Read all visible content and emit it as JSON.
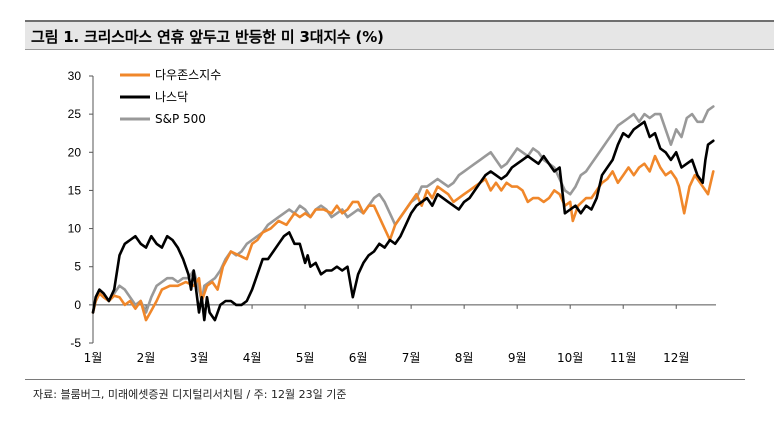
{
  "header": {
    "title": "그림 1. 크리스마스 연휴 앞두고 반등한 미 3대지수 (%)"
  },
  "footer": {
    "source": "자료: 블룸버그, 미래에셋증권 디지털리서치팀 / 주: 12월 23일 기준"
  },
  "chart_data": {
    "type": "line",
    "title": "그림 1. 크리스마스 연휴 앞두고 반등한 미 3대지수 (%)",
    "xlabel": "",
    "ylabel": "",
    "xlim": [
      0,
      11.75
    ],
    "ylim": [
      -5,
      30
    ],
    "yticks": [
      -5,
      0,
      5,
      10,
      15,
      20,
      25,
      30
    ],
    "xticks": [
      {
        "x": 0,
        "label": "1월"
      },
      {
        "x": 1,
        "label": "2월"
      },
      {
        "x": 2,
        "label": "3월"
      },
      {
        "x": 3,
        "label": "4월"
      },
      {
        "x": 4,
        "label": "5월"
      },
      {
        "x": 5,
        "label": "6월"
      },
      {
        "x": 6,
        "label": "7월"
      },
      {
        "x": 7,
        "label": "8월"
      },
      {
        "x": 8,
        "label": "9월"
      },
      {
        "x": 9,
        "label": "10월"
      },
      {
        "x": 10,
        "label": "11월"
      },
      {
        "x": 11,
        "label": "12월"
      }
    ],
    "grid": false,
    "legend_position": "top-left",
    "series": [
      {
        "name": "다우존스지수",
        "color": "#f0872a",
        "x": [
          0,
          0.05,
          0.12,
          0.2,
          0.3,
          0.4,
          0.5,
          0.6,
          0.7,
          0.8,
          0.9,
          1.0,
          1.08,
          1.2,
          1.3,
          1.45,
          1.6,
          1.75,
          1.9,
          2.0,
          2.05,
          2.15,
          2.25,
          2.35,
          2.45,
          2.6,
          2.75,
          2.9,
          3.0,
          3.1,
          3.2,
          3.35,
          3.5,
          3.65,
          3.8,
          3.9,
          4.0,
          4.1,
          4.2,
          4.35,
          4.5,
          4.6,
          4.7,
          4.8,
          4.9,
          5.0,
          5.1,
          5.2,
          5.3,
          5.4,
          5.5,
          5.6,
          5.7,
          5.8,
          5.9,
          6.0,
          6.1,
          6.2,
          6.3,
          6.4,
          6.5,
          6.6,
          6.7,
          6.8,
          6.9,
          7.0,
          7.1,
          7.2,
          7.3,
          7.4,
          7.5,
          7.6,
          7.7,
          7.8,
          7.9,
          8.0,
          8.1,
          8.2,
          8.3,
          8.4,
          8.5,
          8.6,
          8.7,
          8.8,
          8.9,
          9.0,
          9.05,
          9.15,
          9.3,
          9.4,
          9.5,
          9.6,
          9.7,
          9.8,
          9.9,
          10.0,
          10.1,
          10.2,
          10.3,
          10.4,
          10.5,
          10.6,
          10.7,
          10.8,
          10.9,
          11.0,
          11.05,
          11.15,
          11.25,
          11.35,
          11.45,
          11.55,
          11.6,
          11.7
        ],
        "values": [
          -1,
          0.5,
          1.5,
          1.0,
          0.5,
          1.2,
          1.0,
          0.0,
          0.5,
          -0.5,
          0.5,
          -2.0,
          -1.0,
          0.5,
          2.0,
          2.5,
          2.5,
          3.0,
          2.5,
          3.5,
          0.5,
          2.5,
          3.0,
          2.0,
          5.0,
          7.0,
          6.5,
          6.0,
          8.0,
          8.5,
          9.5,
          10.0,
          11.0,
          10.5,
          12.0,
          11.5,
          12.0,
          11.5,
          12.5,
          12.5,
          12.0,
          13.0,
          12.0,
          12.5,
          13.5,
          13.5,
          12.0,
          13.0,
          13.0,
          11.5,
          10.0,
          8.5,
          10.5,
          11.5,
          12.5,
          13.5,
          14.5,
          13.0,
          15.0,
          14.0,
          15.5,
          15.0,
          14.5,
          13.5,
          14.0,
          14.5,
          15.0,
          15.5,
          16.0,
          16.5,
          15.0,
          16.0,
          15.0,
          16.0,
          15.5,
          15.5,
          15.0,
          13.5,
          14.0,
          14.0,
          13.5,
          14.0,
          15.0,
          14.5,
          13.0,
          13.5,
          11.0,
          13.0,
          14.0,
          14.0,
          15.0,
          16.0,
          16.5,
          17.5,
          16.0,
          17.0,
          18.0,
          17.0,
          18.0,
          18.5,
          17.5,
          19.5,
          18.0,
          17.0,
          17.5,
          16.5,
          15.5,
          12.0,
          15.5,
          17.0,
          16.0,
          15.0,
          14.5,
          17.5
        ]
      },
      {
        "name": "나스닥",
        "color": "#000000",
        "x": [
          0,
          0.05,
          0.12,
          0.2,
          0.3,
          0.4,
          0.5,
          0.6,
          0.7,
          0.8,
          0.9,
          1.0,
          1.1,
          1.2,
          1.3,
          1.4,
          1.5,
          1.6,
          1.7,
          1.8,
          1.85,
          1.9,
          2.0,
          2.05,
          2.1,
          2.15,
          2.2,
          2.3,
          2.4,
          2.5,
          2.6,
          2.7,
          2.8,
          2.9,
          3.0,
          3.1,
          3.2,
          3.3,
          3.4,
          3.5,
          3.6,
          3.7,
          3.8,
          3.9,
          4.0,
          4.05,
          4.1,
          4.2,
          4.3,
          4.4,
          4.5,
          4.6,
          4.7,
          4.8,
          4.9,
          5.0,
          5.1,
          5.2,
          5.3,
          5.4,
          5.5,
          5.6,
          5.7,
          5.8,
          5.9,
          6.0,
          6.1,
          6.2,
          6.3,
          6.4,
          6.5,
          6.6,
          6.7,
          6.8,
          6.9,
          7.0,
          7.1,
          7.2,
          7.3,
          7.4,
          7.5,
          7.6,
          7.7,
          7.8,
          7.9,
          8.0,
          8.1,
          8.2,
          8.3,
          8.4,
          8.5,
          8.6,
          8.7,
          8.8,
          8.9,
          9.0,
          9.1,
          9.2,
          9.3,
          9.4,
          9.5,
          9.6,
          9.7,
          9.8,
          9.9,
          10.0,
          10.1,
          10.2,
          10.3,
          10.4,
          10.5,
          10.6,
          10.7,
          10.8,
          10.9,
          11.0,
          11.1,
          11.2,
          11.3,
          11.4,
          11.5,
          11.55,
          11.6,
          11.7
        ],
        "values": [
          -1,
          1.0,
          2.0,
          1.5,
          0.5,
          2.0,
          6.5,
          8.0,
          8.5,
          9.0,
          8.0,
          7.5,
          9.0,
          8.0,
          7.5,
          9.0,
          8.5,
          7.5,
          6.0,
          4.0,
          2.0,
          4.5,
          -1.0,
          1.0,
          -2.0,
          1.0,
          -1.0,
          -2.0,
          0.0,
          0.5,
          0.5,
          0.0,
          0.0,
          0.5,
          2.0,
          4.0,
          6.0,
          6.0,
          7.0,
          8.0,
          9.0,
          9.5,
          8.0,
          8.0,
          5.5,
          6.5,
          5.0,
          5.5,
          4.0,
          4.5,
          4.5,
          5.0,
          4.5,
          5.0,
          1.0,
          4.0,
          5.5,
          6.5,
          7.0,
          8.0,
          7.5,
          8.5,
          8.0,
          9.0,
          10.5,
          12.0,
          13.0,
          13.5,
          14.0,
          13.0,
          14.5,
          14.0,
          13.5,
          13.0,
          12.5,
          13.5,
          14.0,
          15.0,
          16.0,
          17.0,
          17.5,
          17.0,
          16.5,
          17.0,
          18.0,
          18.5,
          19.0,
          19.5,
          19.0,
          18.5,
          19.5,
          18.5,
          17.5,
          18.0,
          12.0,
          12.5,
          13.0,
          12.0,
          13.0,
          12.5,
          14.0,
          17.0,
          18.0,
          19.0,
          21.0,
          22.5,
          22.0,
          23.0,
          23.5,
          24.0,
          22.0,
          22.5,
          20.5,
          20.0,
          19.0,
          20.0,
          18.0,
          18.5,
          19.0,
          17.0,
          16.0,
          19.0,
          21.0,
          21.5
        ]
      },
      {
        "name": "S&P 500",
        "color": "#999999",
        "x": [
          0,
          0.05,
          0.12,
          0.2,
          0.3,
          0.4,
          0.5,
          0.6,
          0.7,
          0.8,
          0.9,
          1.0,
          1.1,
          1.2,
          1.3,
          1.4,
          1.5,
          1.6,
          1.7,
          1.8,
          1.9,
          2.0,
          2.05,
          2.1,
          2.2,
          2.3,
          2.4,
          2.5,
          2.6,
          2.7,
          2.8,
          2.9,
          3.0,
          3.1,
          3.2,
          3.3,
          3.4,
          3.5,
          3.6,
          3.7,
          3.8,
          3.9,
          4.0,
          4.1,
          4.2,
          4.3,
          4.4,
          4.5,
          4.6,
          4.7,
          4.8,
          4.9,
          5.0,
          5.1,
          5.2,
          5.3,
          5.4,
          5.5,
          5.6,
          5.7,
          5.8,
          5.9,
          6.0,
          6.1,
          6.2,
          6.3,
          6.4,
          6.5,
          6.6,
          6.7,
          6.8,
          6.9,
          7.0,
          7.1,
          7.2,
          7.3,
          7.4,
          7.5,
          7.6,
          7.7,
          7.8,
          7.9,
          8.0,
          8.1,
          8.2,
          8.3,
          8.4,
          8.5,
          8.6,
          8.7,
          8.8,
          8.9,
          9.0,
          9.1,
          9.2,
          9.3,
          9.4,
          9.5,
          9.6,
          9.7,
          9.8,
          9.9,
          10.0,
          10.1,
          10.2,
          10.3,
          10.4,
          10.5,
          10.6,
          10.7,
          10.8,
          10.9,
          11.0,
          11.1,
          11.2,
          11.3,
          11.4,
          11.5,
          11.6,
          11.7
        ],
        "values": [
          -1,
          0.5,
          1.5,
          1.0,
          0.5,
          1.5,
          2.5,
          2.0,
          1.0,
          0.0,
          0.5,
          -1.0,
          1.0,
          2.5,
          3.0,
          3.5,
          3.5,
          3.0,
          3.5,
          3.5,
          4.5,
          2.0,
          0.5,
          2.5,
          3.0,
          3.5,
          4.5,
          6.0,
          7.0,
          6.5,
          7.0,
          8.0,
          8.5,
          9.0,
          9.5,
          10.5,
          11.0,
          11.5,
          12.0,
          12.5,
          12.0,
          13.0,
          12.5,
          11.5,
          12.5,
          13.0,
          12.5,
          11.5,
          12.0,
          12.5,
          11.5,
          12.0,
          12.5,
          12.0,
          13.0,
          14.0,
          14.5,
          13.5,
          12.0,
          10.5,
          11.5,
          12.5,
          13.5,
          14.0,
          15.5,
          15.5,
          16.0,
          16.5,
          16.0,
          15.5,
          16.0,
          17.0,
          17.5,
          18.0,
          18.5,
          19.0,
          19.5,
          20.0,
          19.0,
          18.0,
          18.5,
          19.5,
          20.5,
          20.0,
          19.5,
          20.5,
          20.0,
          19.0,
          18.5,
          18.0,
          16.5,
          15.0,
          14.5,
          15.5,
          17.0,
          17.5,
          18.5,
          19.5,
          20.5,
          21.5,
          22.5,
          23.5,
          24.0,
          24.5,
          25.0,
          24.0,
          25.0,
          24.5,
          25.0,
          25.0,
          23.0,
          21.0,
          23.0,
          22.0,
          24.5,
          25.0,
          24.0,
          24.0,
          25.5,
          26.0
        ]
      }
    ]
  }
}
